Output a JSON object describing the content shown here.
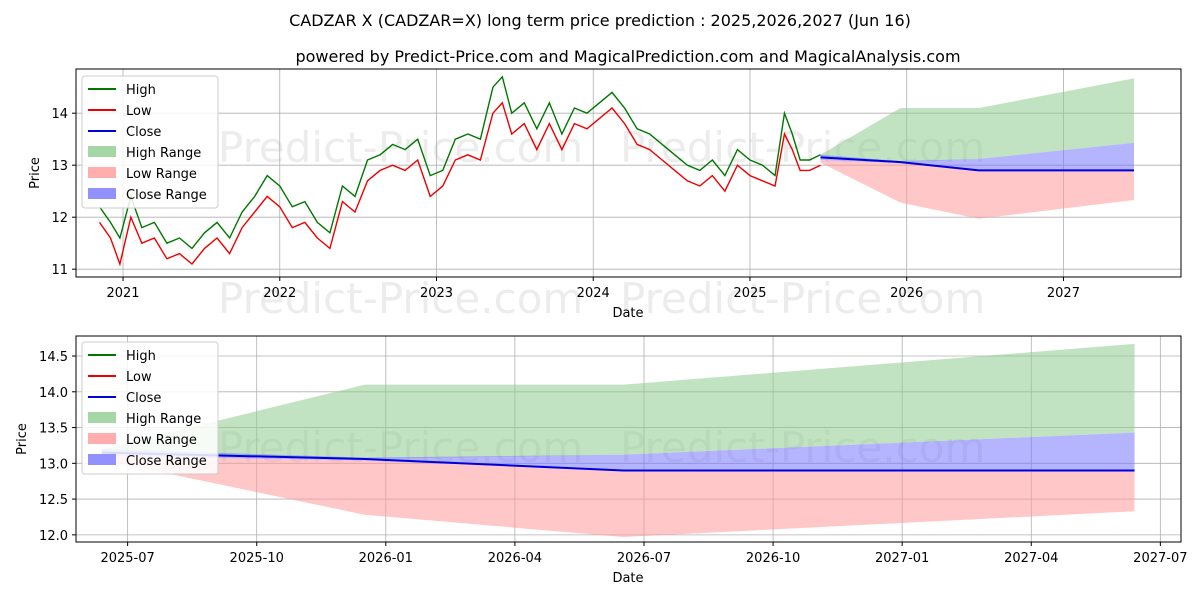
{
  "title": "CADZAR X (CADZAR=X) long term price prediction : 2025,2026,2027 (Jun 16)",
  "subtitle": "powered by Predict-Price.com and MagicalPrediction.com and MagicalAnalysis.com",
  "watermark": "Predict-Price.com",
  "colors": {
    "high": "#007700",
    "low": "#ee0000",
    "close": "#0000dd",
    "high_range": "#8fcc8f",
    "low_range": "#ff9999",
    "close_range": "#7777ff"
  },
  "chart_data": [
    {
      "type": "line",
      "xlabel": "Date",
      "ylabel": "Price",
      "xlim": [
        2020.7,
        2027.75
      ],
      "ylim": [
        10.85,
        14.85
      ],
      "x_ticks": [
        {
          "value": 2021.0,
          "label": "2021"
        },
        {
          "value": 2022.0,
          "label": "2022"
        },
        {
          "value": 2023.0,
          "label": "2023"
        },
        {
          "value": 2024.0,
          "label": "2024"
        },
        {
          "value": 2025.0,
          "label": "2025"
        },
        {
          "value": 2026.0,
          "label": "2026"
        },
        {
          "value": 2027.0,
          "label": "2027"
        }
      ],
      "y_ticks": [
        {
          "value": 11,
          "label": "11"
        },
        {
          "value": 12,
          "label": "12"
        },
        {
          "value": 13,
          "label": "13"
        },
        {
          "value": 14,
          "label": "14"
        }
      ],
      "legend": {
        "position": "top-left",
        "entries": [
          "High",
          "Low",
          "Close",
          "High Range",
          "Low Range",
          "Close Range"
        ]
      },
      "history": {
        "x": [
          2020.85,
          2020.92,
          2020.98,
          2021.05,
          2021.12,
          2021.2,
          2021.28,
          2021.36,
          2021.44,
          2021.52,
          2021.6,
          2021.68,
          2021.76,
          2021.84,
          2021.92,
          2022.0,
          2022.08,
          2022.16,
          2022.24,
          2022.32,
          2022.4,
          2022.48,
          2022.56,
          2022.64,
          2022.72,
          2022.8,
          2022.88,
          2022.96,
          2023.04,
          2023.12,
          2023.2,
          2023.28,
          2023.36,
          2023.42,
          2023.48,
          2023.56,
          2023.64,
          2023.72,
          2023.8,
          2023.88,
          2023.96,
          2024.04,
          2024.12,
          2024.2,
          2024.28,
          2024.36,
          2024.44,
          2024.52,
          2024.6,
          2024.68,
          2024.76,
          2024.84,
          2024.92,
          2025.0,
          2025.08,
          2025.16,
          2025.22,
          2025.27,
          2025.32,
          2025.38,
          2025.45
        ],
        "high": [
          12.2,
          11.9,
          11.6,
          12.4,
          11.8,
          11.9,
          11.5,
          11.6,
          11.4,
          11.7,
          11.9,
          11.6,
          12.1,
          12.4,
          12.8,
          12.6,
          12.2,
          12.3,
          11.9,
          11.7,
          12.6,
          12.4,
          13.1,
          13.2,
          13.4,
          13.3,
          13.5,
          12.8,
          12.9,
          13.5,
          13.6,
          13.5,
          14.5,
          14.7,
          14.0,
          14.2,
          13.7,
          14.2,
          13.6,
          14.1,
          14.0,
          14.2,
          14.4,
          14.1,
          13.7,
          13.6,
          13.4,
          13.2,
          13.0,
          12.9,
          13.1,
          12.8,
          13.3,
          13.1,
          13.0,
          12.8,
          14.0,
          13.6,
          13.1,
          13.1,
          13.2
        ],
        "low": [
          11.9,
          11.6,
          11.1,
          12.0,
          11.5,
          11.6,
          11.2,
          11.3,
          11.1,
          11.4,
          11.6,
          11.3,
          11.8,
          12.1,
          12.4,
          12.2,
          11.8,
          11.9,
          11.6,
          11.4,
          12.3,
          12.1,
          12.7,
          12.9,
          13.0,
          12.9,
          13.1,
          12.4,
          12.6,
          13.1,
          13.2,
          13.1,
          14.0,
          14.2,
          13.6,
          13.8,
          13.3,
          13.8,
          13.3,
          13.8,
          13.7,
          13.9,
          14.1,
          13.8,
          13.4,
          13.3,
          13.1,
          12.9,
          12.7,
          12.6,
          12.8,
          12.5,
          13.0,
          12.8,
          12.7,
          12.6,
          13.6,
          13.3,
          12.9,
          12.9,
          13.0
        ]
      },
      "forecast": {
        "x": [
          2025.45,
          2025.96,
          2026.46,
          2027.45
        ],
        "close": [
          13.15,
          13.06,
          12.9,
          12.9
        ],
        "high_range": {
          "upper": [
            13.2,
            14.1,
            14.1,
            14.67
          ],
          "lower": [
            13.15,
            13.06,
            13.12,
            13.43
          ]
        },
        "close_range": {
          "upper": [
            13.2,
            13.08,
            13.12,
            13.43
          ],
          "lower": [
            13.1,
            13.04,
            12.9,
            12.9
          ]
        },
        "low_range": {
          "upper": [
            13.1,
            13.04,
            12.9,
            12.9
          ],
          "lower": [
            13.05,
            12.28,
            11.97,
            12.33
          ]
        }
      }
    },
    {
      "type": "line",
      "xlabel": "Date",
      "ylabel": "Price",
      "xlim": [
        2025.4,
        2027.54
      ],
      "ylim": [
        11.9,
        14.78
      ],
      "x_ticks": [
        {
          "value": 2025.5,
          "label": "2025-07"
        },
        {
          "value": 2025.75,
          "label": "2025-10"
        },
        {
          "value": 2026.0,
          "label": "2026-01"
        },
        {
          "value": 2026.25,
          "label": "2026-04"
        },
        {
          "value": 2026.5,
          "label": "2026-07"
        },
        {
          "value": 2026.75,
          "label": "2026-10"
        },
        {
          "value": 2027.0,
          "label": "2027-01"
        },
        {
          "value": 2027.25,
          "label": "2027-04"
        },
        {
          "value": 2027.5,
          "label": "2027-07"
        }
      ],
      "y_ticks": [
        {
          "value": 12.0,
          "label": "12.0"
        },
        {
          "value": 12.5,
          "label": "12.5"
        },
        {
          "value": 13.0,
          "label": "13.0"
        },
        {
          "value": 13.5,
          "label": "13.5"
        },
        {
          "value": 14.0,
          "label": "14.0"
        },
        {
          "value": 14.5,
          "label": "14.5"
        }
      ],
      "legend": {
        "position": "top-left",
        "entries": [
          "High",
          "Low",
          "Close",
          "High Range",
          "Low Range",
          "Close Range"
        ]
      },
      "forecast": {
        "x": [
          2025.45,
          2025.96,
          2026.46,
          2027.45
        ],
        "close": [
          13.15,
          13.06,
          12.9,
          12.9
        ],
        "high_range": {
          "upper": [
            13.2,
            14.1,
            14.1,
            14.67
          ],
          "lower": [
            13.15,
            13.06,
            13.12,
            13.43
          ]
        },
        "close_range": {
          "upper": [
            13.2,
            13.08,
            13.12,
            13.43
          ],
          "lower": [
            13.1,
            13.04,
            12.9,
            12.9
          ]
        },
        "low_range": {
          "upper": [
            13.1,
            13.04,
            12.9,
            12.9
          ],
          "lower": [
            13.05,
            12.28,
            11.97,
            12.33
          ]
        }
      }
    }
  ]
}
